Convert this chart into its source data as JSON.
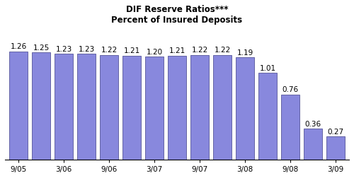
{
  "title_line1": "DIF Reserve Ratios***",
  "title_line2": "Percent of Insured Deposits",
  "values": [
    1.26,
    1.25,
    1.23,
    1.23,
    1.22,
    1.21,
    1.2,
    1.21,
    1.22,
    1.22,
    1.19,
    1.01,
    0.76,
    0.36,
    0.27
  ],
  "tick_positions": [
    0,
    2,
    4,
    6,
    8,
    10,
    12,
    14
  ],
  "tick_labels": [
    "9/05",
    "3/06",
    "9/06",
    "3/07",
    "9/07",
    "3/08",
    "9/08",
    "3/09"
  ],
  "bar_color": "#8888dd",
  "bar_edge_color": "#555599",
  "background_color": "#ffffff",
  "title_fontsize": 8.5,
  "label_fontsize": 7.5,
  "tick_fontsize": 7.5,
  "ylim": [
    0,
    1.55
  ]
}
